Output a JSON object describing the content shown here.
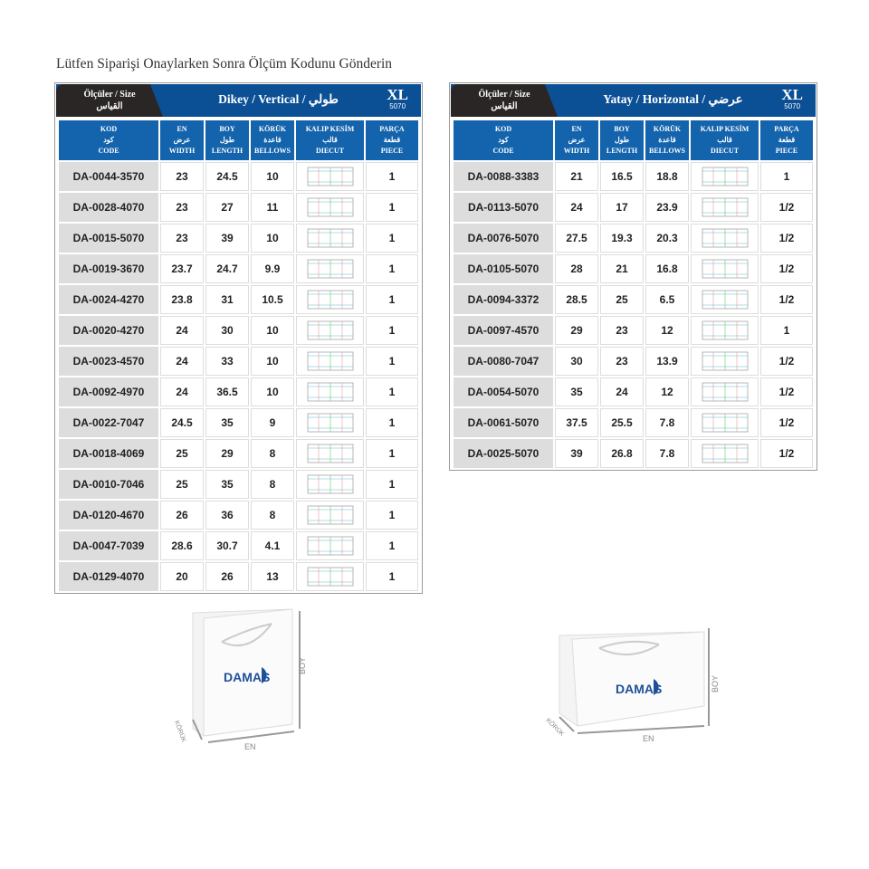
{
  "page": {
    "title": "Lütfen Siparişi Onaylarken Sonra Ölçüm Kodunu Gönderin"
  },
  "columns": {
    "code": [
      "KOD",
      "كود",
      "CODE"
    ],
    "en": [
      "EN",
      "عرض",
      "WIDTH"
    ],
    "boy": [
      "BOY",
      "طول",
      "LENGTH"
    ],
    "koruk": [
      "KÖRÜK",
      "قاعدة",
      "BELLOWS"
    ],
    "diecut": [
      "KALIP KESİM",
      "قالب",
      "DIECUT"
    ],
    "piece": [
      "PARÇA",
      "قطعة",
      "PIECE"
    ]
  },
  "size_label": {
    "line1": "Ölçüler / Size",
    "line2": "القياس"
  },
  "vertical": {
    "title": "Dikey / Vertical / طولي",
    "size": "XL",
    "size_code": "5070",
    "rows": [
      [
        "DA-0044-3570",
        "23",
        "24.5",
        "10",
        "1"
      ],
      [
        "DA-0028-4070",
        "23",
        "27",
        "11",
        "1"
      ],
      [
        "DA-0015-5070",
        "23",
        "39",
        "10",
        "1"
      ],
      [
        "DA-0019-3670",
        "23.7",
        "24.7",
        "9.9",
        "1"
      ],
      [
        "DA-0024-4270",
        "23.8",
        "31",
        "10.5",
        "1"
      ],
      [
        "DA-0020-4270",
        "24",
        "30",
        "10",
        "1"
      ],
      [
        "DA-0023-4570",
        "24",
        "33",
        "10",
        "1"
      ],
      [
        "DA-0092-4970",
        "24",
        "36.5",
        "10",
        "1"
      ],
      [
        "DA-0022-7047",
        "24.5",
        "35",
        "9",
        "1"
      ],
      [
        "DA-0018-4069",
        "25",
        "29",
        "8",
        "1"
      ],
      [
        "DA-0010-7046",
        "25",
        "35",
        "8",
        "1"
      ],
      [
        "DA-0120-4670",
        "26",
        "36",
        "8",
        "1"
      ],
      [
        "DA-0047-7039",
        "28.6",
        "30.7",
        "4.1",
        "1"
      ],
      [
        "DA-0129-4070",
        "20",
        "26",
        "13",
        "1"
      ]
    ]
  },
  "horizontal": {
    "title": "Yatay / Horizontal / عرضي",
    "size": "XL",
    "size_code": "5070",
    "rows": [
      [
        "DA-0088-3383",
        "21",
        "16.5",
        "18.8",
        "1"
      ],
      [
        "DA-0113-5070",
        "24",
        "17",
        "23.9",
        "1/2"
      ],
      [
        "DA-0076-5070",
        "27.5",
        "19.3",
        "20.3",
        "1/2"
      ],
      [
        "DA-0105-5070",
        "28",
        "21",
        "16.8",
        "1/2"
      ],
      [
        "DA-0094-3372",
        "28.5",
        "25",
        "6.5",
        "1/2"
      ],
      [
        "DA-0097-4570",
        "29",
        "23",
        "12",
        "1"
      ],
      [
        "DA-0080-7047",
        "30",
        "23",
        "13.9",
        "1/2"
      ],
      [
        "DA-0054-5070",
        "35",
        "24",
        "12",
        "1/2"
      ],
      [
        "DA-0061-5070",
        "37.5",
        "25.5",
        "7.8",
        "1/2"
      ],
      [
        "DA-0025-5070",
        "39",
        "26.8",
        "7.8",
        "1/2"
      ]
    ]
  },
  "bags": {
    "brand": "DAMAS",
    "koruk": "KÖRÜK",
    "en": "EN",
    "boy": "BOY"
  },
  "colors": {
    "band": "#0b4f95",
    "header": "#1464ad",
    "size_tab": "#2a2626",
    "brand": "#1f4f9a"
  }
}
